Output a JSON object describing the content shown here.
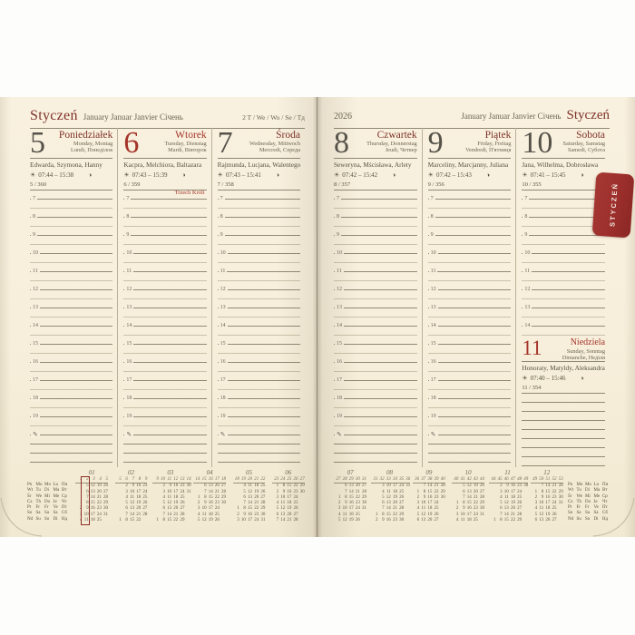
{
  "colors": {
    "page": "#f8f0dd",
    "accent_red": "#a5342a",
    "maroon": "#7e3129",
    "tab_bg": "#9c2f2c",
    "olive_text": "#5d594a",
    "rule": "#8f8874"
  },
  "tab": {
    "label": "STYCZEŃ"
  },
  "left_header": {
    "title": "Styczeń",
    "languages": "January Januar Janvier Січень",
    "week": "2 T / We / Wo / Se / Тд"
  },
  "right_header": {
    "year": "2026",
    "languages": "January Januar Janvier Січень",
    "title": "Styczeń"
  },
  "icons": {
    "sun": "☀",
    "moon": "◑",
    "pencil": "✎"
  },
  "days": [
    {
      "page": "left",
      "num": "5",
      "red": false,
      "name": "Poniedziałek",
      "sub1": "Monday, Montag",
      "sub2": "Lundi, Понеділок",
      "patrons": "Edwarda, Szymona, Hanny",
      "sun": "07:44 – 15:38",
      "doy": "5 / 360",
      "kind": "full",
      "hours_from": 7,
      "hours_to": 19,
      "note": ""
    },
    {
      "page": "left",
      "num": "6",
      "red": true,
      "name": "Wtorek",
      "sub1": "Tuesday, Dienstag",
      "sub2": "Mardi, Вівторок",
      "patrons": "Kacpra, Melchiora, Baltazara",
      "sun": "07:43 – 15:39",
      "doy": "6 / 359",
      "kind": "full",
      "hours_from": 7,
      "hours_to": 19,
      "note": "Trzech Króli"
    },
    {
      "page": "left",
      "num": "7",
      "red": false,
      "name": "Środa",
      "sub1": "Wednesday, Mittwoch",
      "sub2": "Mercredi, Середа",
      "patrons": "Rajmunda, Lucjana, Walentego",
      "sun": "07:43 – 15:41",
      "doy": "7 / 358",
      "kind": "full",
      "hours_from": 7,
      "hours_to": 19,
      "note": ""
    },
    {
      "page": "right",
      "num": "8",
      "red": false,
      "name": "Czwartek",
      "sub1": "Thursday, Donnerstag",
      "sub2": "Jeudi, Четвер",
      "patrons": "Seweryna, Mścisława, Arlety",
      "sun": "07:42 – 15:42",
      "doy": "8 / 357",
      "kind": "full",
      "hours_from": 7,
      "hours_to": 19,
      "note": ""
    },
    {
      "page": "right",
      "num": "9",
      "red": false,
      "name": "Piątek",
      "sub1": "Friday, Freitag",
      "sub2": "Vendredi, П'ятниця",
      "patrons": "Marceliny, Marcjanny, Juliana",
      "sun": "07:42 – 15:43",
      "doy": "9 / 356",
      "kind": "full",
      "hours_from": 7,
      "hours_to": 19,
      "note": ""
    },
    {
      "page": "right",
      "num": "10",
      "red": false,
      "name": "Sobota",
      "sub1": "Saturday, Samstag",
      "sub2": "Samedi, Субота",
      "patrons": "Jana, Wilhelma, Dobrosława",
      "sun": "07:41 – 15:45",
      "doy": "10 / 355",
      "kind": "sat",
      "hours_from": 7,
      "hours_to": 14,
      "note": ""
    },
    {
      "page": "right",
      "num": "11",
      "red": true,
      "name": "Niedziela",
      "sub1": "Sunday, Sonntag",
      "sub2": "Dimanche, Неділя",
      "patrons": "Honoraty, Matyldy, Aleksandra",
      "sun": "07:40 – 15:46",
      "doy": "11 / 354",
      "kind": "sun",
      "note": ""
    }
  ],
  "weekday_labels": [
    [
      "Pn",
      "Mo",
      "Mo",
      "Lu",
      "Пн"
    ],
    [
      "Wt",
      "Tu",
      "Di",
      "Ma",
      "Вт"
    ],
    [
      "Śr",
      "We",
      "Mi",
      "Me",
      "Ср"
    ],
    [
      "Cz",
      "Th",
      "Do",
      "Je",
      "Чт"
    ],
    [
      "Pt",
      "Fr",
      "Fr",
      "Ve",
      "Пт"
    ],
    [
      "So",
      "Sa",
      "Sa",
      "Sa",
      "Сб"
    ],
    [
      "Nd",
      "Su",
      "So",
      "Di",
      "Нд"
    ]
  ],
  "minical_left": [
    {
      "n": "01",
      "hl": 1,
      "w": [
        "1",
        "2",
        "3",
        "4",
        "5"
      ],
      "rows": [
        [
          "",
          "5",
          "12",
          "19",
          "26"
        ],
        [
          "",
          "6",
          "13",
          "20",
          "27"
        ],
        [
          "",
          "7",
          "14",
          "21",
          "28"
        ],
        [
          "1",
          "8",
          "15",
          "22",
          "29"
        ],
        [
          "2",
          "9",
          "16",
          "23",
          "30"
        ],
        [
          "3",
          "10",
          "17",
          "24",
          "31"
        ],
        [
          "4",
          "11",
          "18",
          "25",
          ""
        ]
      ]
    },
    {
      "n": "02",
      "w": [
        "5",
        "6",
        "7",
        "8",
        "9"
      ],
      "rows": [
        [
          "",
          "2",
          "9",
          "16",
          "23"
        ],
        [
          "",
          "3",
          "10",
          "17",
          "24"
        ],
        [
          "",
          "4",
          "11",
          "18",
          "25"
        ],
        [
          "",
          "5",
          "12",
          "19",
          "26"
        ],
        [
          "",
          "6",
          "13",
          "20",
          "27"
        ],
        [
          "",
          "7",
          "14",
          "21",
          "28"
        ],
        [
          "1",
          "8",
          "15",
          "22",
          ""
        ]
      ]
    },
    {
      "n": "03",
      "w": [
        "9",
        "10",
        "11",
        "12",
        "13",
        "14"
      ],
      "rows": [
        [
          "",
          "2",
          "9",
          "16",
          "23",
          "30"
        ],
        [
          "",
          "3",
          "10",
          "17",
          "24",
          "31"
        ],
        [
          "",
          "4",
          "11",
          "18",
          "25",
          ""
        ],
        [
          "",
          "5",
          "12",
          "19",
          "26",
          ""
        ],
        [
          "",
          "6",
          "13",
          "20",
          "27",
          ""
        ],
        [
          "",
          "7",
          "14",
          "21",
          "28",
          ""
        ],
        [
          "1",
          "8",
          "15",
          "22",
          "29",
          ""
        ]
      ]
    },
    {
      "n": "04",
      "w": [
        "14",
        "15",
        "16",
        "17",
        "18"
      ],
      "rows": [
        [
          "",
          "6",
          "13",
          "20",
          "27"
        ],
        [
          "",
          "7",
          "14",
          "21",
          "28"
        ],
        [
          "1",
          "8",
          "15",
          "22",
          "29"
        ],
        [
          "2",
          "9",
          "16",
          "23",
          "30"
        ],
        [
          "3",
          "10",
          "17",
          "24",
          ""
        ],
        [
          "4",
          "11",
          "18",
          "25",
          ""
        ],
        [
          "5",
          "12",
          "19",
          "26",
          ""
        ]
      ]
    },
    {
      "n": "05",
      "w": [
        "18",
        "19",
        "20",
        "21",
        "22"
      ],
      "rows": [
        [
          "",
          "4",
          "11",
          "18",
          "25"
        ],
        [
          "",
          "5",
          "12",
          "19",
          "26"
        ],
        [
          "",
          "6",
          "13",
          "20",
          "27"
        ],
        [
          "",
          "7",
          "14",
          "21",
          "28"
        ],
        [
          "1",
          "8",
          "15",
          "22",
          "29"
        ],
        [
          "2",
          "9",
          "16",
          "23",
          "30"
        ],
        [
          "3",
          "10",
          "17",
          "24",
          "31"
        ]
      ]
    },
    {
      "n": "06",
      "w": [
        "23",
        "24",
        "25",
        "26",
        "27"
      ],
      "rows": [
        [
          "1",
          "8",
          "15",
          "22",
          "29"
        ],
        [
          "2",
          "9",
          "16",
          "23",
          "30"
        ],
        [
          "3",
          "10",
          "17",
          "24",
          ""
        ],
        [
          "4",
          "11",
          "18",
          "25",
          ""
        ],
        [
          "5",
          "12",
          "19",
          "26",
          ""
        ],
        [
          "6",
          "13",
          "20",
          "27",
          ""
        ],
        [
          "7",
          "14",
          "21",
          "28",
          ""
        ]
      ]
    }
  ],
  "minical_right": [
    {
      "n": "07",
      "w": [
        "27",
        "28",
        "29",
        "30",
        "31"
      ],
      "rows": [
        [
          "",
          "6",
          "13",
          "20",
          "27"
        ],
        [
          "",
          "7",
          "14",
          "21",
          "28"
        ],
        [
          "1",
          "8",
          "15",
          "22",
          "29"
        ],
        [
          "2",
          "9",
          "16",
          "23",
          "30"
        ],
        [
          "3",
          "10",
          "17",
          "24",
          "31"
        ],
        [
          "4",
          "11",
          "18",
          "25",
          ""
        ],
        [
          "5",
          "12",
          "19",
          "26",
          ""
        ]
      ]
    },
    {
      "n": "08",
      "w": [
        "31",
        "32",
        "33",
        "34",
        "35",
        "36"
      ],
      "rows": [
        [
          "",
          "3",
          "10",
          "17",
          "24",
          "31"
        ],
        [
          "",
          "4",
          "11",
          "18",
          "25",
          ""
        ],
        [
          "",
          "5",
          "12",
          "19",
          "26",
          ""
        ],
        [
          "",
          "6",
          "13",
          "20",
          "27",
          ""
        ],
        [
          "",
          "7",
          "14",
          "21",
          "28",
          ""
        ],
        [
          "1",
          "8",
          "15",
          "22",
          "29",
          ""
        ],
        [
          "2",
          "9",
          "16",
          "23",
          "30",
          ""
        ]
      ]
    },
    {
      "n": "09",
      "w": [
        "36",
        "37",
        "38",
        "39",
        "40"
      ],
      "rows": [
        [
          "",
          "7",
          "14",
          "21",
          "28"
        ],
        [
          "1",
          "8",
          "15",
          "22",
          "29"
        ],
        [
          "2",
          "9",
          "16",
          "23",
          "30"
        ],
        [
          "3",
          "10",
          "17",
          "24",
          ""
        ],
        [
          "4",
          "11",
          "18",
          "25",
          ""
        ],
        [
          "5",
          "12",
          "19",
          "26",
          ""
        ],
        [
          "6",
          "13",
          "20",
          "27",
          ""
        ]
      ]
    },
    {
      "n": "10",
      "w": [
        "40",
        "41",
        "42",
        "43",
        "44"
      ],
      "rows": [
        [
          "",
          "5",
          "12",
          "19",
          "26"
        ],
        [
          "",
          "6",
          "13",
          "20",
          "27"
        ],
        [
          "",
          "7",
          "14",
          "21",
          "28"
        ],
        [
          "1",
          "8",
          "15",
          "22",
          "29"
        ],
        [
          "2",
          "9",
          "16",
          "23",
          "30"
        ],
        [
          "3",
          "10",
          "17",
          "24",
          "31"
        ],
        [
          "4",
          "11",
          "18",
          "25",
          ""
        ]
      ]
    },
    {
      "n": "11",
      "w": [
        "44",
        "45",
        "46",
        "47",
        "48",
        "49"
      ],
      "rows": [
        [
          "",
          "2",
          "9",
          "16",
          "23",
          "30"
        ],
        [
          "",
          "3",
          "10",
          "17",
          "24",
          ""
        ],
        [
          "",
          "4",
          "11",
          "18",
          "25",
          ""
        ],
        [
          "",
          "5",
          "12",
          "19",
          "26",
          ""
        ],
        [
          "",
          "6",
          "13",
          "20",
          "27",
          ""
        ],
        [
          "",
          "7",
          "14",
          "21",
          "28",
          ""
        ],
        [
          "1",
          "8",
          "15",
          "22",
          "29",
          ""
        ]
      ]
    },
    {
      "n": "12",
      "w": [
        "49",
        "50",
        "51",
        "52",
        "53"
      ],
      "rows": [
        [
          "",
          "7",
          "14",
          "21",
          "28"
        ],
        [
          "1",
          "8",
          "15",
          "22",
          "29"
        ],
        [
          "2",
          "9",
          "16",
          "23",
          "30"
        ],
        [
          "3",
          "10",
          "17",
          "24",
          "31"
        ],
        [
          "4",
          "11",
          "18",
          "25",
          ""
        ],
        [
          "5",
          "12",
          "19",
          "26",
          ""
        ],
        [
          "6",
          "13",
          "20",
          "27",
          ""
        ]
      ]
    }
  ]
}
